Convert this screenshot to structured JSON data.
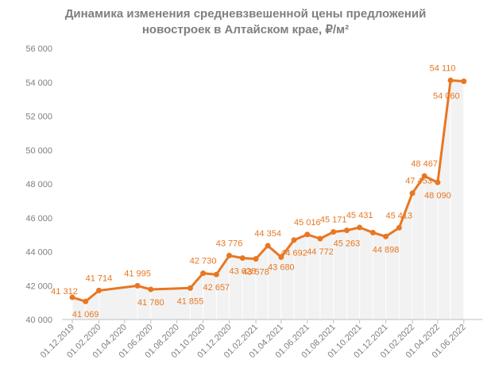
{
  "chart_data": {
    "type": "line",
    "title": [
      "Динамика изменения средневзвешенной цены предложений",
      "новостроек в Алтайском крае, ₽/м²"
    ],
    "xlabel": "",
    "ylabel": "",
    "ylim": [
      40000,
      56000
    ],
    "y_ticks": [
      "40 000",
      "42 000",
      "44 000",
      "46 000",
      "48 000",
      "50 000",
      "52 000",
      "54 000",
      "56 000"
    ],
    "x_ticks": [
      "01.12.2019",
      "01.02.2020",
      "01.04.2020",
      "01.06.2020",
      "01.08.2020",
      "01.10.2020",
      "01.12.2020",
      "01.02.2021",
      "01.04.2021",
      "01.06.2021",
      "01.08.2021",
      "01.10.2021",
      "01.12.2021",
      "01.02.2022",
      "01.04.2022",
      "01.06.2022"
    ],
    "grid": false,
    "legend": "none",
    "colors": {
      "line": "#e87722",
      "area": "#f2f2f2",
      "text": "#7f7f7f",
      "axis": "#bfbfbf",
      "label": "#e87722"
    },
    "series": [
      {
        "x": [
          "2019-12-01",
          "2020-01-01",
          "2020-02-01",
          "2020-05-01",
          "2020-06-01",
          "2020-09-01",
          "2020-10-01",
          "2020-11-01",
          "2020-12-01",
          "2021-01-01",
          "2021-02-01",
          "2021-03-01",
          "2021-04-01",
          "2021-05-01",
          "2021-06-01",
          "2021-07-01",
          "2021-08-01",
          "2021-09-01",
          "2021-10-01",
          "2021-11-01",
          "2021-12-01",
          "2022-01-01",
          "2022-02-01",
          "2022-03-01",
          "2022-04-01",
          "2022-05-01",
          "2022-06-01"
        ],
        "values": [
          41312,
          41069,
          41714,
          41995,
          41780,
          41855,
          42730,
          42657,
          43776,
          43628,
          43578,
          44354,
          43680,
          44692,
          45016,
          44772,
          45171,
          45263,
          45431,
          45130,
          44898,
          45413,
          47453,
          48467,
          48090,
          54110,
          54060
        ],
        "labels": [
          "41 312",
          "41 069",
          "41 714",
          "41 995",
          "41 780",
          "41 855",
          "42 730",
          "42 657",
          "43 776",
          "43 628",
          "43 578",
          "44 354",
          "43 680",
          "44 692",
          "45 016",
          "44 772",
          "45 171",
          "45 263",
          "45 431",
          "",
          "44 898",
          "45 413",
          "47 453",
          "48 467",
          "48 090",
          "54 110",
          "54 060"
        ]
      }
    ]
  }
}
